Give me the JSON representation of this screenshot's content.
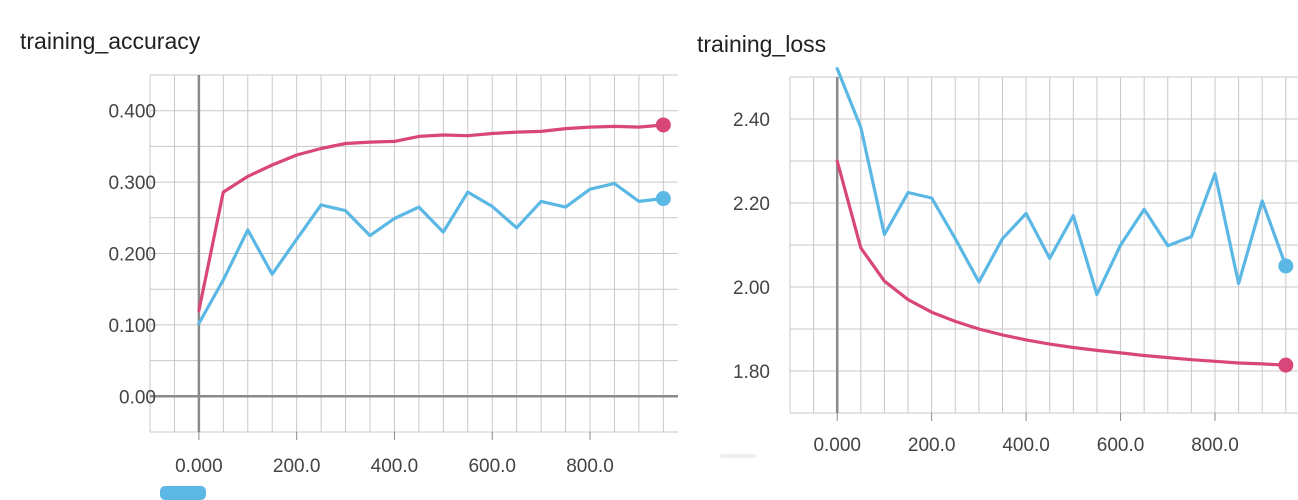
{
  "colors": {
    "pink": "#d9477a",
    "blue": "#5bb8e4",
    "grid": "#c8c8c8",
    "axis": "#8a8a8a"
  },
  "chart_data": [
    {
      "type": "line",
      "title": "training_accuracy",
      "xlim": [
        -100,
        980
      ],
      "ylim": [
        -0.05,
        0.45
      ],
      "x_ticks": [
        0,
        200,
        400,
        600,
        800
      ],
      "x_tick_labels": [
        "0.000",
        "200.0",
        "400.0",
        "600.0",
        "800.0"
      ],
      "y_ticks": [
        0,
        0.1,
        0.2,
        0.3,
        0.4
      ],
      "y_tick_labels": [
        "0.00",
        "0.100",
        "0.200",
        "0.300",
        "0.400"
      ],
      "grid": true,
      "series": [
        {
          "color": "#d9477a",
          "x": [
            0,
            50,
            100,
            150,
            200,
            250,
            300,
            350,
            400,
            450,
            500,
            550,
            600,
            650,
            700,
            750,
            800,
            850,
            900,
            950
          ],
          "y": [
            0.12,
            0.286,
            0.308,
            0.324,
            0.338,
            0.347,
            0.354,
            0.356,
            0.357,
            0.364,
            0.366,
            0.365,
            0.368,
            0.37,
            0.371,
            0.375,
            0.377,
            0.378,
            0.377,
            0.38
          ]
        },
        {
          "color": "#5bb8e4",
          "x": [
            0,
            50,
            100,
            150,
            200,
            250,
            300,
            350,
            400,
            450,
            500,
            550,
            600,
            650,
            700,
            750,
            800,
            850,
            900,
            950
          ],
          "y": [
            0.102,
            0.163,
            0.233,
            0.171,
            0.22,
            0.268,
            0.26,
            0.225,
            0.249,
            0.265,
            0.23,
            0.286,
            0.266,
            0.236,
            0.273,
            0.265,
            0.29,
            0.298,
            0.273,
            0.277
          ]
        }
      ]
    },
    {
      "type": "line",
      "title": "training_loss",
      "xlim": [
        -100,
        980
      ],
      "ylim": [
        1.7,
        2.5
      ],
      "x_ticks": [
        0,
        200,
        400,
        600,
        800
      ],
      "x_tick_labels": [
        "0.000",
        "200.0",
        "400.0",
        "600.0",
        "800.0"
      ],
      "y_ticks": [
        1.8,
        2.0,
        2.2,
        2.4
      ],
      "y_tick_labels": [
        "1.80",
        "2.00",
        "2.20",
        "2.40"
      ],
      "grid": true,
      "series": [
        {
          "color": "#d9477a",
          "x": [
            0,
            50,
            100,
            150,
            200,
            250,
            300,
            350,
            400,
            450,
            500,
            550,
            600,
            650,
            700,
            750,
            800,
            850,
            900,
            950
          ],
          "y": [
            2.3,
            2.093,
            2.014,
            1.97,
            1.94,
            1.918,
            1.9,
            1.886,
            1.874,
            1.864,
            1.856,
            1.849,
            1.843,
            1.837,
            1.832,
            1.827,
            1.823,
            1.819,
            1.817,
            1.814
          ]
        },
        {
          "color": "#5bb8e4",
          "x": [
            0,
            50,
            100,
            150,
            200,
            250,
            300,
            350,
            400,
            450,
            500,
            550,
            600,
            650,
            700,
            750,
            800,
            850,
            900,
            950
          ],
          "y": [
            2.52,
            2.38,
            2.125,
            2.225,
            2.212,
            2.115,
            2.012,
            2.115,
            2.175,
            2.068,
            2.17,
            1.982,
            2.1,
            2.185,
            2.098,
            2.12,
            2.27,
            2.008,
            2.205,
            2.05
          ]
        }
      ]
    }
  ]
}
